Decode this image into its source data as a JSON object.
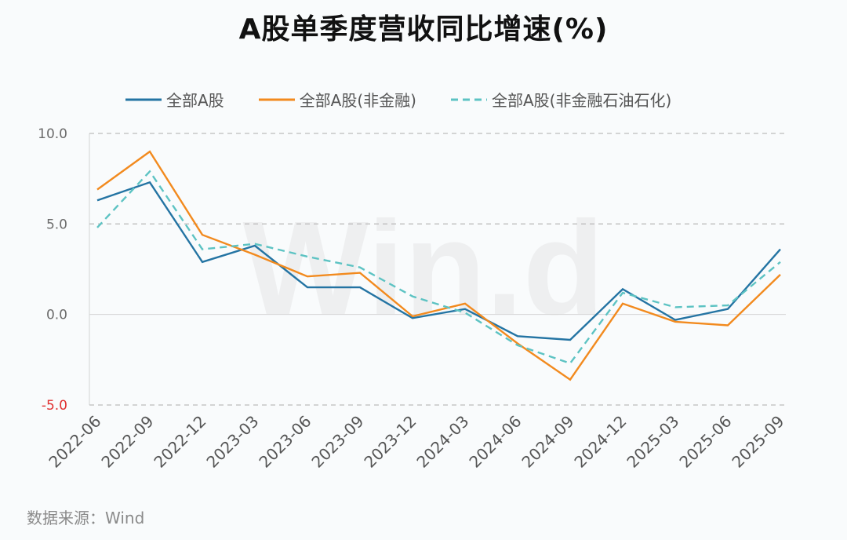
{
  "title": "A股单季度营收同比增速(%)",
  "source": "数据来源：Wind",
  "watermark": "Wind",
  "legend": [
    {
      "label": "全部A股",
      "color": "#2474a3",
      "dash": false
    },
    {
      "label": "全部A股(非金融)",
      "color": "#f28a1e",
      "dash": false
    },
    {
      "label": "全部A股(非金融石油石化)",
      "color": "#5dc3c3",
      "dash": true
    }
  ],
  "yaxis": {
    "ticks": [
      "10.0",
      "5.0",
      "0.0",
      "-5.0"
    ]
  },
  "chart_data": {
    "type": "line",
    "title": "A股单季度营收同比增速(%)",
    "xlabel": "",
    "ylabel": "",
    "ylim": [
      -5,
      10
    ],
    "grid": true,
    "legend_position": "top",
    "categories": [
      "2022-06",
      "2022-09",
      "2022-12",
      "2023-03",
      "2023-06",
      "2023-09",
      "2023-12",
      "2024-03",
      "2024-06",
      "2024-09",
      "2024-12",
      "2025-03",
      "2025-06",
      "2025-09"
    ],
    "series": [
      {
        "name": "全部A股",
        "color": "#2474a3",
        "values": [
          6.3,
          7.3,
          2.9,
          3.8,
          1.5,
          1.5,
          -0.2,
          0.3,
          -1.2,
          -1.4,
          1.4,
          -0.3,
          0.3,
          3.6
        ]
      },
      {
        "name": "全部A股(非金融)",
        "color": "#f28a1e",
        "values": [
          6.9,
          9.0,
          4.4,
          3.3,
          2.1,
          2.3,
          -0.1,
          0.6,
          -1.6,
          -3.6,
          0.6,
          -0.4,
          -0.6,
          2.2
        ]
      },
      {
        "name": "全部A股(非金融石油石化)",
        "color": "#5dc3c3",
        "values": [
          4.8,
          7.9,
          3.6,
          3.9,
          3.2,
          2.6,
          1.0,
          0.1,
          -1.7,
          -2.7,
          1.2,
          0.4,
          0.5,
          2.9
        ]
      }
    ]
  }
}
